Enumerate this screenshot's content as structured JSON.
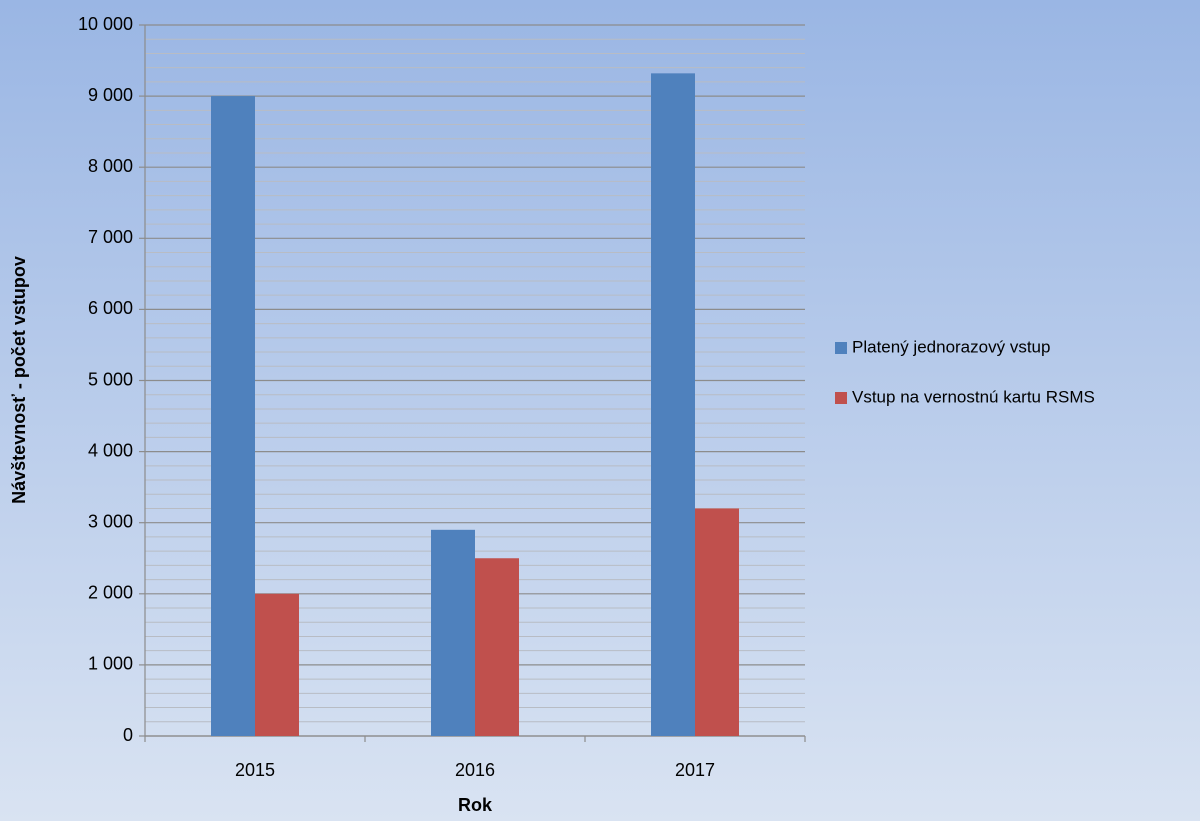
{
  "chart_data": {
    "type": "bar",
    "x_label": "Rok",
    "y_label": "Návštevnosť - počet vstupov",
    "categories": [
      "2015",
      "2016",
      "2017"
    ],
    "series": [
      {
        "name": "Platený jednorazový vstup",
        "color": "#4f81bd",
        "values": [
          9000,
          2900,
          9320
        ]
      },
      {
        "name": "Vstup na vernostnú kartu RSMS",
        "color": "#c0504d",
        "values": [
          2000,
          2500,
          3200
        ]
      }
    ],
    "ylim": [
      0,
      10000
    ],
    "yticks": [
      0,
      {
        "value": 1000,
        "label": "1 000"
      },
      {
        "value": 2000,
        "label": "2 000"
      },
      {
        "value": 3000,
        "label": "3 000"
      },
      {
        "value": 4000,
        "label": "4 000"
      },
      {
        "value": 5000,
        "label": "5 000"
      },
      {
        "value": 6000,
        "label": "6 000"
      },
      {
        "value": 7000,
        "label": "7 000"
      },
      {
        "value": 8000,
        "label": "8 000"
      },
      {
        "value": 9000,
        "label": "9 000"
      },
      {
        "value": 10000,
        "label": "10 000"
      }
    ],
    "minor_yticks": [
      200,
      400,
      600,
      800,
      1200,
      1400,
      1600,
      1800,
      2200,
      2400,
      2600,
      2800,
      3200,
      3400,
      3600,
      3800,
      4200,
      4400,
      4600,
      4800,
      5200,
      5400,
      5600,
      5800,
      6200,
      6400,
      6600,
      6800,
      7200,
      7400,
      7600,
      7800,
      8200,
      8400,
      8600,
      8800,
      9200,
      9400,
      9600,
      9800
    ],
    "grid": true,
    "legend": "right"
  }
}
